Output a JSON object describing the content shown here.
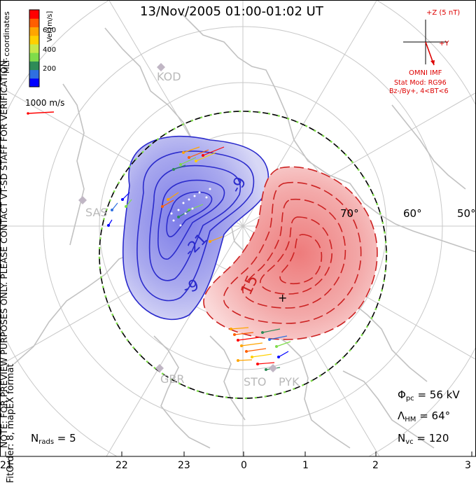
{
  "title": "13/Nov/2005 01:00-01:02 UT",
  "side_note": "NOTE: FOR PREVIEW PURPOSES ONLY. PLEASE CONTACT VT-SD STAFF FOR VERIFICATION.",
  "fit_order": "FitOrder: 8, mapEX format",
  "coord_system": "MLT coordinates",
  "colorbar": {
    "label": "Vel [m/s]",
    "ticks": [
      "600",
      "400",
      "200"
    ],
    "colors": [
      "#0000ff",
      "#2f6fe0",
      "#2e8b57",
      "#7fdc4a",
      "#c7e84a",
      "#ffd000",
      "#ffa500",
      "#ff5e00",
      "#ff0000"
    ]
  },
  "vector_scale": "1000 m/s",
  "imf": {
    "z_label": "+Z (5 nT)",
    "y_label": "+Y",
    "source": "OMNI IMF",
    "model": "Stat Mod: RG96",
    "condition": "Bz-/By+, 4<BT<6"
  },
  "stats": {
    "phi_pc_symbol": "Φ",
    "phi_pc_sub": "pc",
    "phi_pc_value": " = 56 kV",
    "lambda_hm_symbol": "Λ",
    "lambda_hm_sub": "HM",
    "lambda_hm_value": " = 64°",
    "n_vc_symbol": "N",
    "n_vc_sub": "vc",
    "n_vc_value": " = 120",
    "n_rads_symbol": "N",
    "n_rads_sub": "rads",
    "n_rads_value": " = 5"
  },
  "mlt_ticks": [
    "21",
    "22",
    "23",
    "0",
    "1",
    "2",
    "3"
  ],
  "lat_labels": [
    "70°",
    "60°",
    "50°"
  ],
  "stations": [
    "KOD",
    "SAS",
    "GBR",
    "STO",
    "PYK"
  ],
  "contour_labels": [
    "-9",
    "-21",
    "-9",
    "15"
  ],
  "colors": {
    "negative_cell": "#2b2bcc",
    "positive_cell": "#cc2222",
    "imf_vector": "#dd0000",
    "hmb_boundary": "#000000"
  }
}
